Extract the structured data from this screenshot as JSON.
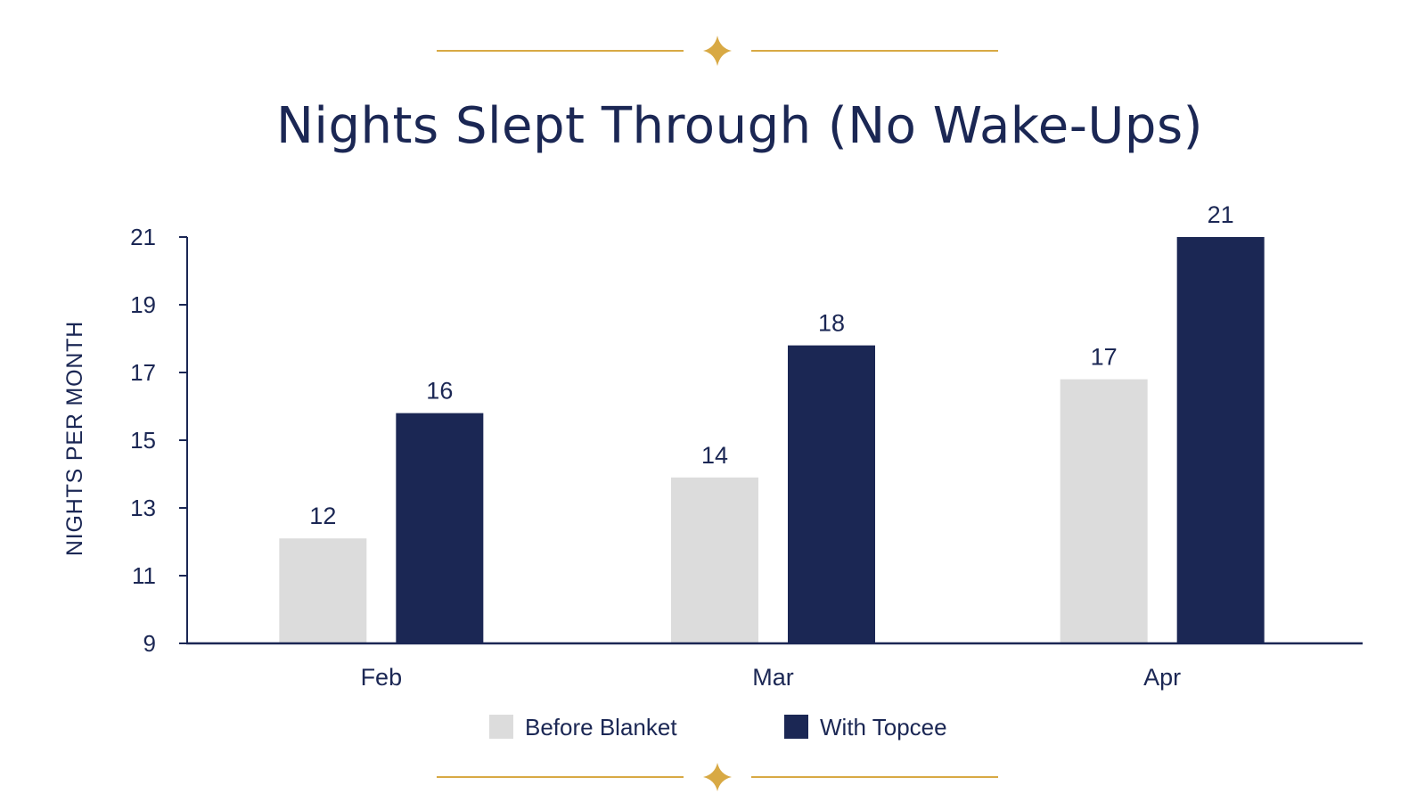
{
  "colors": {
    "navy": "#1b2754",
    "light": "#dcdcdc",
    "gold": "#d8a944",
    "text": "#1b2754"
  },
  "ornament": {
    "icon": "four-point-star-icon"
  },
  "chart_data": {
    "type": "bar",
    "title": "Nights Slept Through (No Wake-Ups)",
    "xlabel": "",
    "ylabel": "NIGHTS PER MONTH",
    "categories": [
      "Feb",
      "Mar",
      "Apr"
    ],
    "ylim": [
      9,
      21
    ],
    "yticks": [
      9,
      11,
      13,
      15,
      17,
      19,
      21
    ],
    "series": [
      {
        "name": "Before Blanket",
        "color": "#dcdcdc",
        "values": [
          12.1,
          13.9,
          16.8
        ],
        "labels": [
          "12",
          "14",
          "17"
        ]
      },
      {
        "name": "With Topcee",
        "color": "#1b2754",
        "values": [
          15.8,
          17.8,
          21
        ],
        "labels": [
          "16",
          "18",
          "21"
        ]
      }
    ],
    "legend": "bottom-center",
    "grid": false
  }
}
